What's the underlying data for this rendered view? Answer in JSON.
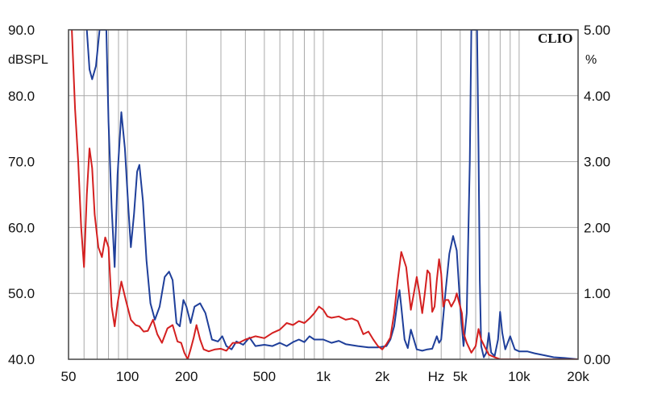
{
  "chart_data": {
    "type": "line",
    "brand": "CLIO",
    "x_scale": "log",
    "xlim": [
      50,
      20000
    ],
    "x_ticks": [
      {
        "value": 50,
        "label": "50"
      },
      {
        "value": 100,
        "label": "100"
      },
      {
        "value": 200,
        "label": "200"
      },
      {
        "value": 500,
        "label": "500"
      },
      {
        "value": 1000,
        "label": "1k"
      },
      {
        "value": 2000,
        "label": "2k"
      },
      {
        "value": 5000,
        "label": "5k"
      },
      {
        "value": 10000,
        "label": "10k"
      },
      {
        "value": 20000,
        "label": "20k"
      }
    ],
    "x_unit_label": "Hz",
    "y_left": {
      "label": "dBSPL",
      "lim": [
        40,
        90
      ],
      "ticks": [
        "40.0",
        "50.0",
        "60.0",
        "70.0",
        "80.0",
        "90.0"
      ]
    },
    "y_right": {
      "label": "%",
      "lim": [
        0,
        5
      ],
      "ticks": [
        "0.00",
        "1.00",
        "2.00",
        "3.00",
        "4.00",
        "5.00"
      ]
    },
    "grid": true,
    "colors": {
      "blue_series": "#1f3f9a",
      "red_series": "#d42020",
      "grid": "#a8a8a8",
      "frame": "#444444",
      "background": "#ffffff"
    },
    "series": [
      {
        "color_key": "blue_series",
        "axis": "left",
        "points": [
          [
            62,
            90
          ],
          [
            64,
            84
          ],
          [
            66,
            82.5
          ],
          [
            69,
            84.5
          ],
          [
            72,
            90
          ],
          [
            78,
            90
          ],
          [
            80,
            76
          ],
          [
            83,
            63
          ],
          [
            86,
            54
          ],
          [
            89,
            68
          ],
          [
            93,
            77.5
          ],
          [
            97,
            72
          ],
          [
            101,
            63
          ],
          [
            104,
            57
          ],
          [
            108,
            62
          ],
          [
            112,
            68.5
          ],
          [
            115,
            69.5
          ],
          [
            120,
            64
          ],
          [
            125,
            55
          ],
          [
            131,
            48.5
          ],
          [
            138,
            46
          ],
          [
            146,
            48
          ],
          [
            155,
            52.5
          ],
          [
            163,
            53.3
          ],
          [
            170,
            52
          ],
          [
            178,
            45.5
          ],
          [
            185,
            45
          ],
          [
            193,
            49
          ],
          [
            200,
            48
          ],
          [
            210,
            45.5
          ],
          [
            220,
            48
          ],
          [
            235,
            48.5
          ],
          [
            250,
            47
          ],
          [
            270,
            43
          ],
          [
            290,
            42.7
          ],
          [
            305,
            43.5
          ],
          [
            320,
            42
          ],
          [
            340,
            41.5
          ],
          [
            360,
            42.7
          ],
          [
            390,
            42.2
          ],
          [
            420,
            43.3
          ],
          [
            450,
            42
          ],
          [
            500,
            42.2
          ],
          [
            550,
            42
          ],
          [
            600,
            42.5
          ],
          [
            650,
            42
          ],
          [
            700,
            42.6
          ],
          [
            750,
            43
          ],
          [
            800,
            42.6
          ],
          [
            850,
            43.5
          ],
          [
            900,
            43
          ],
          [
            1000,
            43
          ],
          [
            1100,
            42.5
          ],
          [
            1200,
            42.8
          ],
          [
            1300,
            42.3
          ],
          [
            1500,
            42
          ],
          [
            1700,
            41.8
          ],
          [
            1900,
            41.8
          ],
          [
            2100,
            42
          ],
          [
            2200,
            43
          ],
          [
            2300,
            45
          ],
          [
            2350,
            47
          ],
          [
            2400,
            49
          ],
          [
            2450,
            50.5
          ],
          [
            2500,
            48
          ],
          [
            2600,
            43
          ],
          [
            2700,
            41.7
          ],
          [
            2800,
            44.5
          ],
          [
            2900,
            43
          ],
          [
            3000,
            41.5
          ],
          [
            3200,
            41.3
          ],
          [
            3400,
            41.5
          ],
          [
            3600,
            41.6
          ],
          [
            3800,
            43.5
          ],
          [
            3900,
            42.5
          ],
          [
            4000,
            43
          ],
          [
            4200,
            50
          ],
          [
            4400,
            56
          ],
          [
            4600,
            58.7
          ],
          [
            4800,
            56.5
          ],
          [
            5000,
            48
          ],
          [
            5200,
            42
          ],
          [
            5400,
            47
          ],
          [
            5600,
            70
          ],
          [
            5700,
            90
          ],
          [
            6100,
            90
          ],
          [
            6200,
            72
          ],
          [
            6300,
            52
          ],
          [
            6400,
            42
          ],
          [
            6600,
            40.3
          ],
          [
            6800,
            41
          ],
          [
            7000,
            44
          ],
          [
            7200,
            41
          ],
          [
            7500,
            40.5
          ],
          [
            7800,
            43
          ],
          [
            8000,
            47.2
          ],
          [
            8200,
            44
          ],
          [
            8500,
            41.5
          ],
          [
            9000,
            43.5
          ],
          [
            9500,
            41.5
          ],
          [
            10000,
            41.2
          ],
          [
            11000,
            41.2
          ],
          [
            12000,
            40.9
          ],
          [
            13500,
            40.6
          ],
          [
            15000,
            40.3
          ],
          [
            17000,
            40.2
          ],
          [
            20000,
            40
          ]
        ]
      },
      {
        "color_key": "red_series",
        "axis": "left",
        "points": [
          [
            52,
            90
          ],
          [
            54,
            78
          ],
          [
            56,
            70
          ],
          [
            58,
            60
          ],
          [
            60,
            54
          ],
          [
            62,
            65
          ],
          [
            64,
            72
          ],
          [
            66,
            69
          ],
          [
            68,
            62
          ],
          [
            71,
            57
          ],
          [
            74,
            55.5
          ],
          [
            77,
            58.5
          ],
          [
            80,
            57
          ],
          [
            83,
            48
          ],
          [
            86,
            45
          ],
          [
            89,
            48.5
          ],
          [
            93,
            51.8
          ],
          [
            98,
            49
          ],
          [
            104,
            46
          ],
          [
            110,
            45.2
          ],
          [
            115,
            45
          ],
          [
            121,
            44.2
          ],
          [
            127,
            44.3
          ],
          [
            135,
            46
          ],
          [
            142,
            43.8
          ],
          [
            150,
            42.5
          ],
          [
            160,
            44.7
          ],
          [
            170,
            45.2
          ],
          [
            180,
            42.7
          ],
          [
            188,
            42.5
          ],
          [
            195,
            41
          ],
          [
            203,
            40
          ],
          [
            210,
            41.5
          ],
          [
            218,
            43.3
          ],
          [
            225,
            45.2
          ],
          [
            235,
            43
          ],
          [
            245,
            41.5
          ],
          [
            260,
            41.2
          ],
          [
            280,
            41.5
          ],
          [
            300,
            41.6
          ],
          [
            320,
            41.3
          ],
          [
            345,
            42.5
          ],
          [
            370,
            42.5
          ],
          [
            400,
            43
          ],
          [
            450,
            43.5
          ],
          [
            500,
            43.2
          ],
          [
            550,
            44
          ],
          [
            600,
            44.5
          ],
          [
            650,
            45.5
          ],
          [
            700,
            45.2
          ],
          [
            750,
            45.8
          ],
          [
            800,
            45.5
          ],
          [
            850,
            46.2
          ],
          [
            900,
            47
          ],
          [
            950,
            48
          ],
          [
            1000,
            47.5
          ],
          [
            1050,
            46.5
          ],
          [
            1100,
            46.3
          ],
          [
            1200,
            46.5
          ],
          [
            1300,
            46
          ],
          [
            1400,
            46.2
          ],
          [
            1500,
            45.8
          ],
          [
            1600,
            43.8
          ],
          [
            1700,
            44.2
          ],
          [
            1800,
            43
          ],
          [
            1900,
            42
          ],
          [
            2000,
            41.5
          ],
          [
            2100,
            42.3
          ],
          [
            2200,
            43.3
          ],
          [
            2300,
            47
          ],
          [
            2400,
            52
          ],
          [
            2500,
            56.3
          ],
          [
            2650,
            54
          ],
          [
            2800,
            47.5
          ],
          [
            2900,
            50
          ],
          [
            3000,
            52.5
          ],
          [
            3100,
            50
          ],
          [
            3200,
            47
          ],
          [
            3300,
            50
          ],
          [
            3400,
            53.5
          ],
          [
            3500,
            53
          ],
          [
            3600,
            47.2
          ],
          [
            3700,
            48
          ],
          [
            3800,
            52
          ],
          [
            3900,
            55.2
          ],
          [
            4000,
            53
          ],
          [
            4100,
            48
          ],
          [
            4200,
            49
          ],
          [
            4350,
            49
          ],
          [
            4500,
            48
          ],
          [
            4700,
            49
          ],
          [
            4800,
            50
          ],
          [
            5000,
            48
          ],
          [
            5100,
            47
          ],
          [
            5200,
            44
          ],
          [
            5400,
            42.5
          ],
          [
            5700,
            41
          ],
          [
            6000,
            42
          ],
          [
            6200,
            44.6
          ],
          [
            6400,
            43
          ],
          [
            6700,
            41.8
          ],
          [
            7000,
            40.7
          ],
          [
            7500,
            40.3
          ],
          [
            8000,
            40
          ],
          [
            9000,
            40
          ],
          [
            10000,
            40
          ],
          [
            12000,
            40
          ],
          [
            15000,
            40
          ],
          [
            20000,
            40
          ]
        ]
      }
    ]
  }
}
